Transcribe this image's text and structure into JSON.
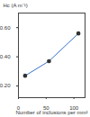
{
  "chart_data": {
    "type": "line",
    "xlabel": "Number of inclusions per mm²",
    "ylabel": "Hc (A m⁻¹)",
    "x": [
      12,
      55,
      108
    ],
    "series": [
      {
        "name": "Hc",
        "color": "#3b73c9",
        "values": [
          0.27,
          0.37,
          0.56
        ],
        "marker": "circle",
        "line_style": "solid"
      }
    ],
    "xlim": [
      0,
      120
    ],
    "xticks": [
      0,
      50,
      100
    ],
    "ylim": [
      0.12,
      0.7
    ],
    "yticks": [
      0.2,
      0.4,
      0.6
    ],
    "grid": false
  }
}
